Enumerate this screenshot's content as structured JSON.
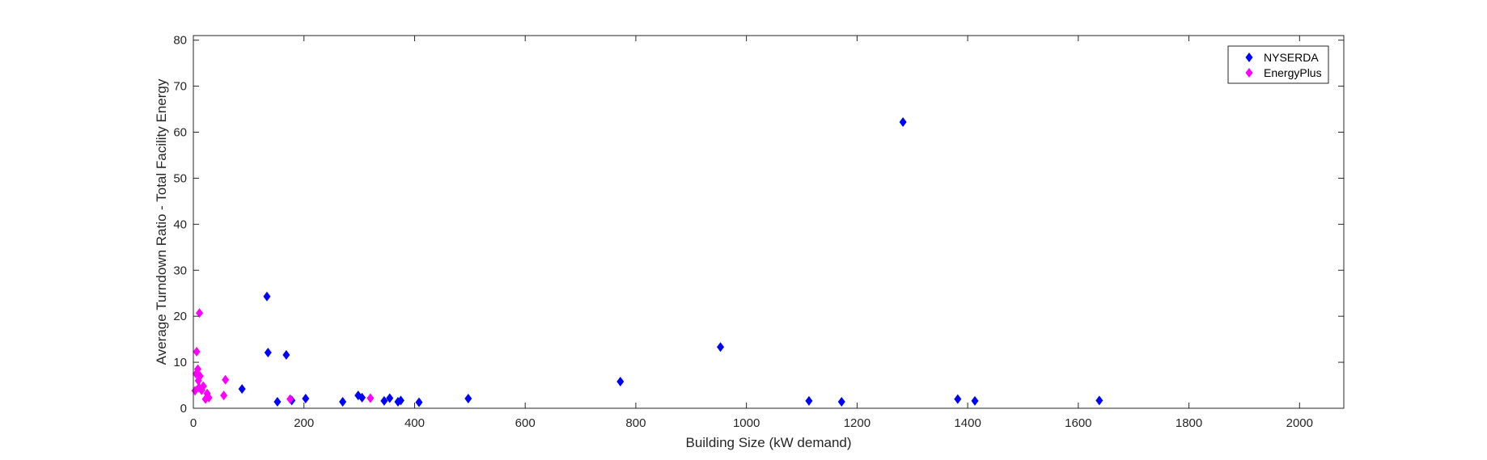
{
  "chart_data": {
    "type": "scatter",
    "title": "",
    "xlabel": "Building Size (kW demand)",
    "ylabel": "Average Turndown Ratio - Total Facility Energy",
    "xlim": [
      0,
      2080
    ],
    "ylim": [
      0,
      81
    ],
    "xticks": [
      0,
      200,
      400,
      600,
      800,
      1000,
      1200,
      1400,
      1600,
      1800,
      2000
    ],
    "yticks": [
      0,
      10,
      20,
      30,
      40,
      50,
      60,
      70,
      80
    ],
    "grid": false,
    "legend_position": "top-right",
    "marker": "diamond",
    "series": [
      {
        "name": "NYSERDA",
        "color": "#0000ff",
        "points": [
          [
            88,
            4.2
          ],
          [
            133,
            24.3
          ],
          [
            135,
            12.1
          ],
          [
            152,
            1.4
          ],
          [
            168,
            11.6
          ],
          [
            178,
            1.7
          ],
          [
            203,
            2.1
          ],
          [
            270,
            1.4
          ],
          [
            298,
            2.8
          ],
          [
            305,
            2.3
          ],
          [
            345,
            1.6
          ],
          [
            355,
            2.2
          ],
          [
            370,
            1.4
          ],
          [
            375,
            1.7
          ],
          [
            408,
            1.3
          ],
          [
            497,
            2.1
          ],
          [
            772,
            5.8
          ],
          [
            953,
            13.3
          ],
          [
            1113,
            1.6
          ],
          [
            1172,
            1.4
          ],
          [
            1283,
            62.2
          ],
          [
            1382,
            2.0
          ],
          [
            1413,
            1.6
          ],
          [
            1638,
            1.7
          ]
        ]
      },
      {
        "name": "EnergyPlus",
        "color": "#ff00ff",
        "points": [
          [
            3,
            3.8
          ],
          [
            5,
            7.5
          ],
          [
            6,
            12.3
          ],
          [
            8,
            8.5
          ],
          [
            9,
            6.0
          ],
          [
            10,
            4.5
          ],
          [
            11,
            20.7
          ],
          [
            12,
            7.0
          ],
          [
            15,
            3.9
          ],
          [
            18,
            4.8
          ],
          [
            22,
            2.0
          ],
          [
            25,
            3.2
          ],
          [
            28,
            2.3
          ],
          [
            55,
            2.8
          ],
          [
            58,
            6.2
          ],
          [
            175,
            2.0
          ],
          [
            320,
            2.2
          ]
        ]
      }
    ]
  }
}
